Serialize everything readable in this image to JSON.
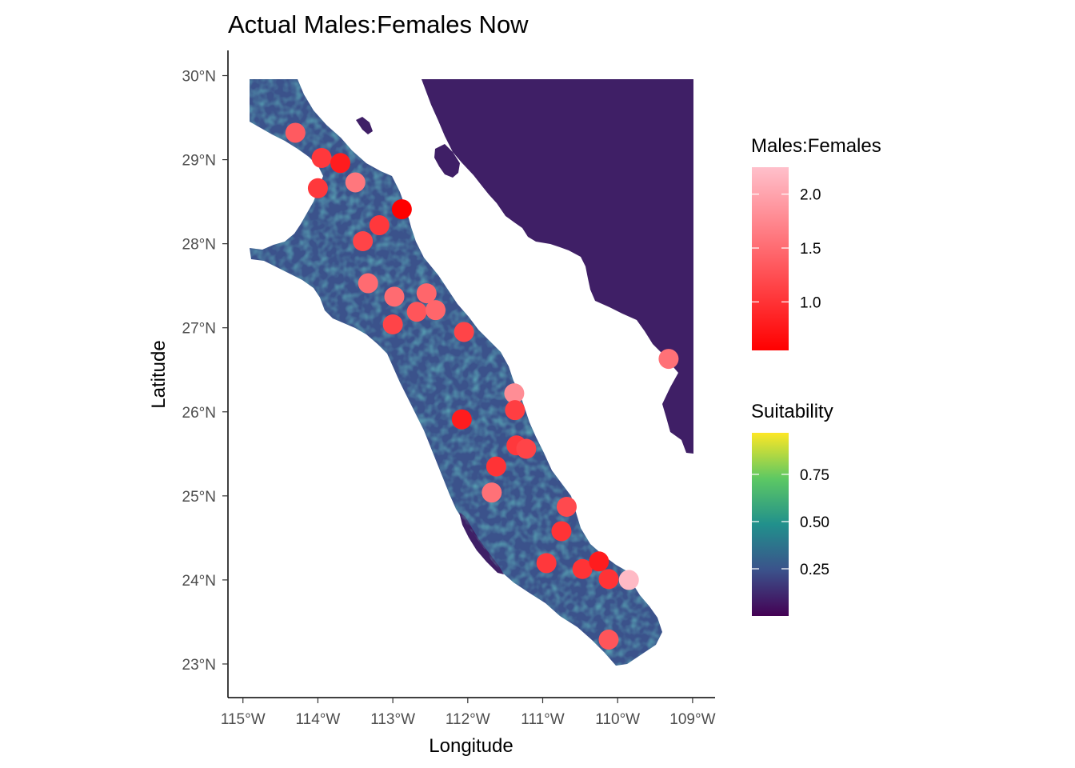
{
  "title": "Actual Males:Females Now",
  "colors": {
    "sea": "#ffffff",
    "land_low": "#440154",
    "land_mid": "#21908c",
    "land_high": "#fde725",
    "point_low": "#ff0000",
    "point_high": "#ffc0cb"
  },
  "chart_data": {
    "type": "scatter",
    "title": "Actual Males:Females Now",
    "xlabel": "Longitude",
    "ylabel": "Latitude",
    "xlim": [
      -115.2,
      -108.7
    ],
    "ylim": [
      22.6,
      30.3
    ],
    "x_ticks": [
      {
        "value": -115,
        "label": "115°W"
      },
      {
        "value": -114,
        "label": "114°W"
      },
      {
        "value": -113,
        "label": "113°W"
      },
      {
        "value": -112,
        "label": "112°W"
      },
      {
        "value": -111,
        "label": "111°W"
      },
      {
        "value": -110,
        "label": "110°W"
      },
      {
        "value": -109,
        "label": "109°W"
      }
    ],
    "y_ticks": [
      {
        "value": 23,
        "label": "23°N"
      },
      {
        "value": 24,
        "label": "24°N"
      },
      {
        "value": 25,
        "label": "25°N"
      },
      {
        "value": 26,
        "label": "26°N"
      },
      {
        "value": 27,
        "label": "27°N"
      },
      {
        "value": 28,
        "label": "28°N"
      },
      {
        "value": 29,
        "label": "29°N"
      },
      {
        "value": 30,
        "label": "30°N"
      }
    ],
    "grid": false,
    "legend_placement": "right",
    "legends": [
      {
        "title": "Males:Females",
        "range": [
          0.55,
          2.25
        ],
        "ticks": [
          {
            "value": 1.0,
            "label": "1.0"
          },
          {
            "value": 1.5,
            "label": "1.5"
          },
          {
            "value": 2.0,
            "label": "2.0"
          }
        ],
        "colors": [
          "#ff0000",
          "#ffc0cb"
        ]
      },
      {
        "title": "Suitability",
        "range": [
          0.0,
          0.97
        ],
        "ticks": [
          {
            "value": 0.25,
            "label": "0.25"
          },
          {
            "value": 0.5,
            "label": "0.50"
          },
          {
            "value": 0.75,
            "label": "0.75"
          }
        ],
        "colors": [
          "#440154",
          "#3b528b",
          "#21908c",
          "#5dc863",
          "#fde725"
        ]
      }
    ],
    "points": [
      {
        "x": -114.3,
        "y": 29.32,
        "ratio": 1.35
      },
      {
        "x": -113.95,
        "y": 29.02,
        "ratio": 1.05
      },
      {
        "x": -113.7,
        "y": 28.96,
        "ratio": 0.8
      },
      {
        "x": -114.0,
        "y": 28.66,
        "ratio": 1.05
      },
      {
        "x": -113.5,
        "y": 28.73,
        "ratio": 1.6
      },
      {
        "x": -112.88,
        "y": 28.41,
        "ratio": 0.55
      },
      {
        "x": -113.18,
        "y": 28.22,
        "ratio": 1.05
      },
      {
        "x": -113.4,
        "y": 28.03,
        "ratio": 1.15
      },
      {
        "x": -113.33,
        "y": 27.53,
        "ratio": 1.5
      },
      {
        "x": -112.98,
        "y": 27.37,
        "ratio": 1.5
      },
      {
        "x": -112.55,
        "y": 27.41,
        "ratio": 1.45
      },
      {
        "x": -112.68,
        "y": 27.19,
        "ratio": 1.3
      },
      {
        "x": -112.43,
        "y": 27.21,
        "ratio": 1.45
      },
      {
        "x": -113.0,
        "y": 27.04,
        "ratio": 1.15
      },
      {
        "x": -112.05,
        "y": 26.95,
        "ratio": 1.15
      },
      {
        "x": -109.32,
        "y": 26.63,
        "ratio": 1.55
      },
      {
        "x": -111.38,
        "y": 26.22,
        "ratio": 1.8
      },
      {
        "x": -111.37,
        "y": 26.02,
        "ratio": 1.1
      },
      {
        "x": -112.08,
        "y": 25.91,
        "ratio": 0.8
      },
      {
        "x": -111.35,
        "y": 25.6,
        "ratio": 1.05
      },
      {
        "x": -111.22,
        "y": 25.56,
        "ratio": 1.15
      },
      {
        "x": -111.62,
        "y": 25.35,
        "ratio": 1.0
      },
      {
        "x": -111.68,
        "y": 25.04,
        "ratio": 1.55
      },
      {
        "x": -110.68,
        "y": 24.87,
        "ratio": 1.2
      },
      {
        "x": -110.75,
        "y": 24.58,
        "ratio": 1.0
      },
      {
        "x": -110.95,
        "y": 24.2,
        "ratio": 1.05
      },
      {
        "x": -110.47,
        "y": 24.13,
        "ratio": 1.0
      },
      {
        "x": -110.25,
        "y": 24.22,
        "ratio": 0.8
      },
      {
        "x": -110.12,
        "y": 24.01,
        "ratio": 1.0
      },
      {
        "x": -109.85,
        "y": 24.0,
        "ratio": 2.2
      },
      {
        "x": -110.12,
        "y": 23.29,
        "ratio": 1.3
      }
    ]
  }
}
